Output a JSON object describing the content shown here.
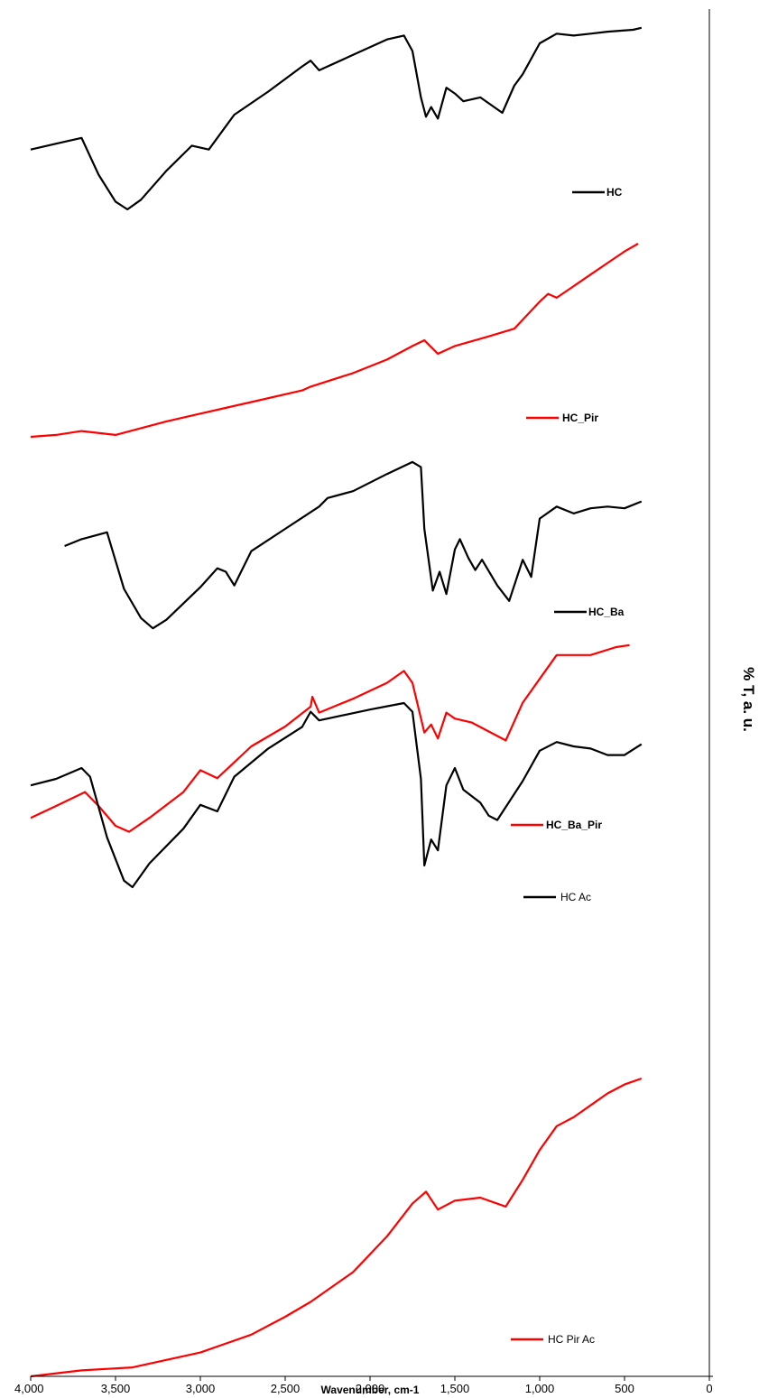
{
  "chart_data": {
    "type": "line",
    "title": "",
    "xlabel": "Wavenumber, cm-1",
    "ylabel": "% T, a. u.",
    "x_reversed": true,
    "xlim": [
      4000,
      0
    ],
    "x_ticks": [
      4000,
      3500,
      3000,
      2500,
      2000,
      1500,
      1000,
      500,
      0
    ],
    "x_tick_labels": [
      "4,000",
      "3,500",
      "3,000",
      "2,500",
      "2,000",
      "1,500",
      "1,000",
      "500",
      "0"
    ],
    "grid": false,
    "legend_placement": "inline, beside each curve",
    "series": [
      {
        "name": "HC",
        "color": "#000000",
        "points": [
          [
            4000,
            0.31
          ],
          [
            3850,
            0.34
          ],
          [
            3700,
            0.37
          ],
          [
            3600,
            0.18
          ],
          [
            3500,
            0.04
          ],
          [
            3430,
            0.0
          ],
          [
            3350,
            0.05
          ],
          [
            3200,
            0.2
          ],
          [
            3050,
            0.33
          ],
          [
            2950,
            0.31
          ],
          [
            2800,
            0.49
          ],
          [
            2600,
            0.61
          ],
          [
            2400,
            0.74
          ],
          [
            2350,
            0.77
          ],
          [
            2300,
            0.72
          ],
          [
            2100,
            0.8
          ],
          [
            1900,
            0.88
          ],
          [
            1800,
            0.9
          ],
          [
            1750,
            0.82
          ],
          [
            1700,
            0.58
          ],
          [
            1670,
            0.48
          ],
          [
            1640,
            0.53
          ],
          [
            1600,
            0.47
          ],
          [
            1550,
            0.63
          ],
          [
            1500,
            0.6
          ],
          [
            1450,
            0.56
          ],
          [
            1350,
            0.58
          ],
          [
            1220,
            0.5
          ],
          [
            1150,
            0.64
          ],
          [
            1100,
            0.7
          ],
          [
            1000,
            0.86
          ],
          [
            900,
            0.91
          ],
          [
            800,
            0.9
          ],
          [
            700,
            0.91
          ],
          [
            600,
            0.92
          ],
          [
            450,
            0.93
          ],
          [
            400,
            0.94
          ]
        ]
      },
      {
        "name": "HC_Pir",
        "color": "#ff0000",
        "points": [
          [
            4000,
            0.0
          ],
          [
            3850,
            0.01
          ],
          [
            3700,
            0.03
          ],
          [
            3500,
            0.01
          ],
          [
            3200,
            0.08
          ],
          [
            3000,
            0.12
          ],
          [
            2700,
            0.18
          ],
          [
            2400,
            0.24
          ],
          [
            2350,
            0.26
          ],
          [
            2100,
            0.33
          ],
          [
            1900,
            0.4
          ],
          [
            1750,
            0.47
          ],
          [
            1680,
            0.5
          ],
          [
            1600,
            0.43
          ],
          [
            1500,
            0.47
          ],
          [
            1300,
            0.52
          ],
          [
            1150,
            0.56
          ],
          [
            1000,
            0.7
          ],
          [
            950,
            0.74
          ],
          [
            900,
            0.72
          ],
          [
            800,
            0.78
          ],
          [
            700,
            0.84
          ],
          [
            600,
            0.9
          ],
          [
            500,
            0.96
          ],
          [
            420,
            1.0
          ]
        ]
      },
      {
        "name": "HC_Ba",
        "color": "#000000",
        "points": [
          [
            3800,
            0.5
          ],
          [
            3700,
            0.54
          ],
          [
            3550,
            0.58
          ],
          [
            3450,
            0.25
          ],
          [
            3350,
            0.08
          ],
          [
            3280,
            0.02
          ],
          [
            3200,
            0.07
          ],
          [
            3000,
            0.26
          ],
          [
            2900,
            0.37
          ],
          [
            2850,
            0.35
          ],
          [
            2800,
            0.27
          ],
          [
            2700,
            0.47
          ],
          [
            2500,
            0.6
          ],
          [
            2300,
            0.73
          ],
          [
            2250,
            0.78
          ],
          [
            2100,
            0.82
          ],
          [
            1900,
            0.92
          ],
          [
            1750,
            0.99
          ],
          [
            1700,
            0.96
          ],
          [
            1680,
            0.6
          ],
          [
            1630,
            0.24
          ],
          [
            1590,
            0.35
          ],
          [
            1550,
            0.22
          ],
          [
            1500,
            0.48
          ],
          [
            1470,
            0.54
          ],
          [
            1420,
            0.43
          ],
          [
            1380,
            0.36
          ],
          [
            1340,
            0.42
          ],
          [
            1250,
            0.27
          ],
          [
            1180,
            0.18
          ],
          [
            1100,
            0.42
          ],
          [
            1050,
            0.32
          ],
          [
            1000,
            0.66
          ],
          [
            900,
            0.73
          ],
          [
            800,
            0.69
          ],
          [
            700,
            0.72
          ],
          [
            600,
            0.73
          ],
          [
            500,
            0.72
          ],
          [
            400,
            0.76
          ]
        ]
      },
      {
        "name": "HC_Ba_Pir",
        "color": "#ff0000",
        "points": [
          [
            4000,
            0.04
          ],
          [
            3850,
            0.1
          ],
          [
            3680,
            0.17
          ],
          [
            3600,
            0.1
          ],
          [
            3500,
            0.0
          ],
          [
            3420,
            -0.03
          ],
          [
            3300,
            0.04
          ],
          [
            3100,
            0.17
          ],
          [
            3000,
            0.28
          ],
          [
            2900,
            0.24
          ],
          [
            2700,
            0.4
          ],
          [
            2500,
            0.5
          ],
          [
            2350,
            0.6
          ],
          [
            2340,
            0.65
          ],
          [
            2300,
            0.57
          ],
          [
            2100,
            0.64
          ],
          [
            1900,
            0.72
          ],
          [
            1800,
            0.78
          ],
          [
            1750,
            0.72
          ],
          [
            1680,
            0.47
          ],
          [
            1640,
            0.51
          ],
          [
            1600,
            0.44
          ],
          [
            1550,
            0.57
          ],
          [
            1500,
            0.54
          ],
          [
            1400,
            0.52
          ],
          [
            1200,
            0.43
          ],
          [
            1100,
            0.62
          ],
          [
            1000,
            0.74
          ],
          [
            900,
            0.86
          ],
          [
            700,
            0.86
          ],
          [
            550,
            0.9
          ],
          [
            470,
            0.91
          ]
        ]
      },
      {
        "name": "HC Ac",
        "color": "#000000",
        "points": [
          [
            4000,
            0.52
          ],
          [
            3850,
            0.55
          ],
          [
            3700,
            0.6
          ],
          [
            3650,
            0.56
          ],
          [
            3550,
            0.28
          ],
          [
            3450,
            0.08
          ],
          [
            3400,
            0.05
          ],
          [
            3300,
            0.16
          ],
          [
            3100,
            0.32
          ],
          [
            3000,
            0.43
          ],
          [
            2900,
            0.4
          ],
          [
            2800,
            0.56
          ],
          [
            2600,
            0.69
          ],
          [
            2400,
            0.79
          ],
          [
            2350,
            0.86
          ],
          [
            2300,
            0.82
          ],
          [
            2000,
            0.87
          ],
          [
            1800,
            0.9
          ],
          [
            1750,
            0.86
          ],
          [
            1700,
            0.55
          ],
          [
            1680,
            0.15
          ],
          [
            1640,
            0.27
          ],
          [
            1600,
            0.22
          ],
          [
            1550,
            0.52
          ],
          [
            1500,
            0.6
          ],
          [
            1450,
            0.5
          ],
          [
            1350,
            0.44
          ],
          [
            1300,
            0.38
          ],
          [
            1250,
            0.36
          ],
          [
            1100,
            0.54
          ],
          [
            1000,
            0.68
          ],
          [
            900,
            0.72
          ],
          [
            800,
            0.7
          ],
          [
            700,
            0.69
          ],
          [
            600,
            0.66
          ],
          [
            500,
            0.66
          ],
          [
            400,
            0.71
          ]
        ]
      },
      {
        "name": "HC Pir Ac",
        "color": "#ff0000",
        "points": [
          [
            4000,
            0.0
          ],
          [
            3700,
            0.02
          ],
          [
            3400,
            0.03
          ],
          [
            3000,
            0.08
          ],
          [
            2700,
            0.14
          ],
          [
            2500,
            0.2
          ],
          [
            2350,
            0.25
          ],
          [
            2100,
            0.35
          ],
          [
            1900,
            0.47
          ],
          [
            1750,
            0.58
          ],
          [
            1670,
            0.62
          ],
          [
            1600,
            0.56
          ],
          [
            1500,
            0.59
          ],
          [
            1350,
            0.6
          ],
          [
            1200,
            0.57
          ],
          [
            1100,
            0.66
          ],
          [
            1000,
            0.76
          ],
          [
            900,
            0.84
          ],
          [
            800,
            0.87
          ],
          [
            700,
            0.91
          ],
          [
            600,
            0.95
          ],
          [
            500,
            0.98
          ],
          [
            400,
            1.0
          ]
        ]
      }
    ]
  }
}
